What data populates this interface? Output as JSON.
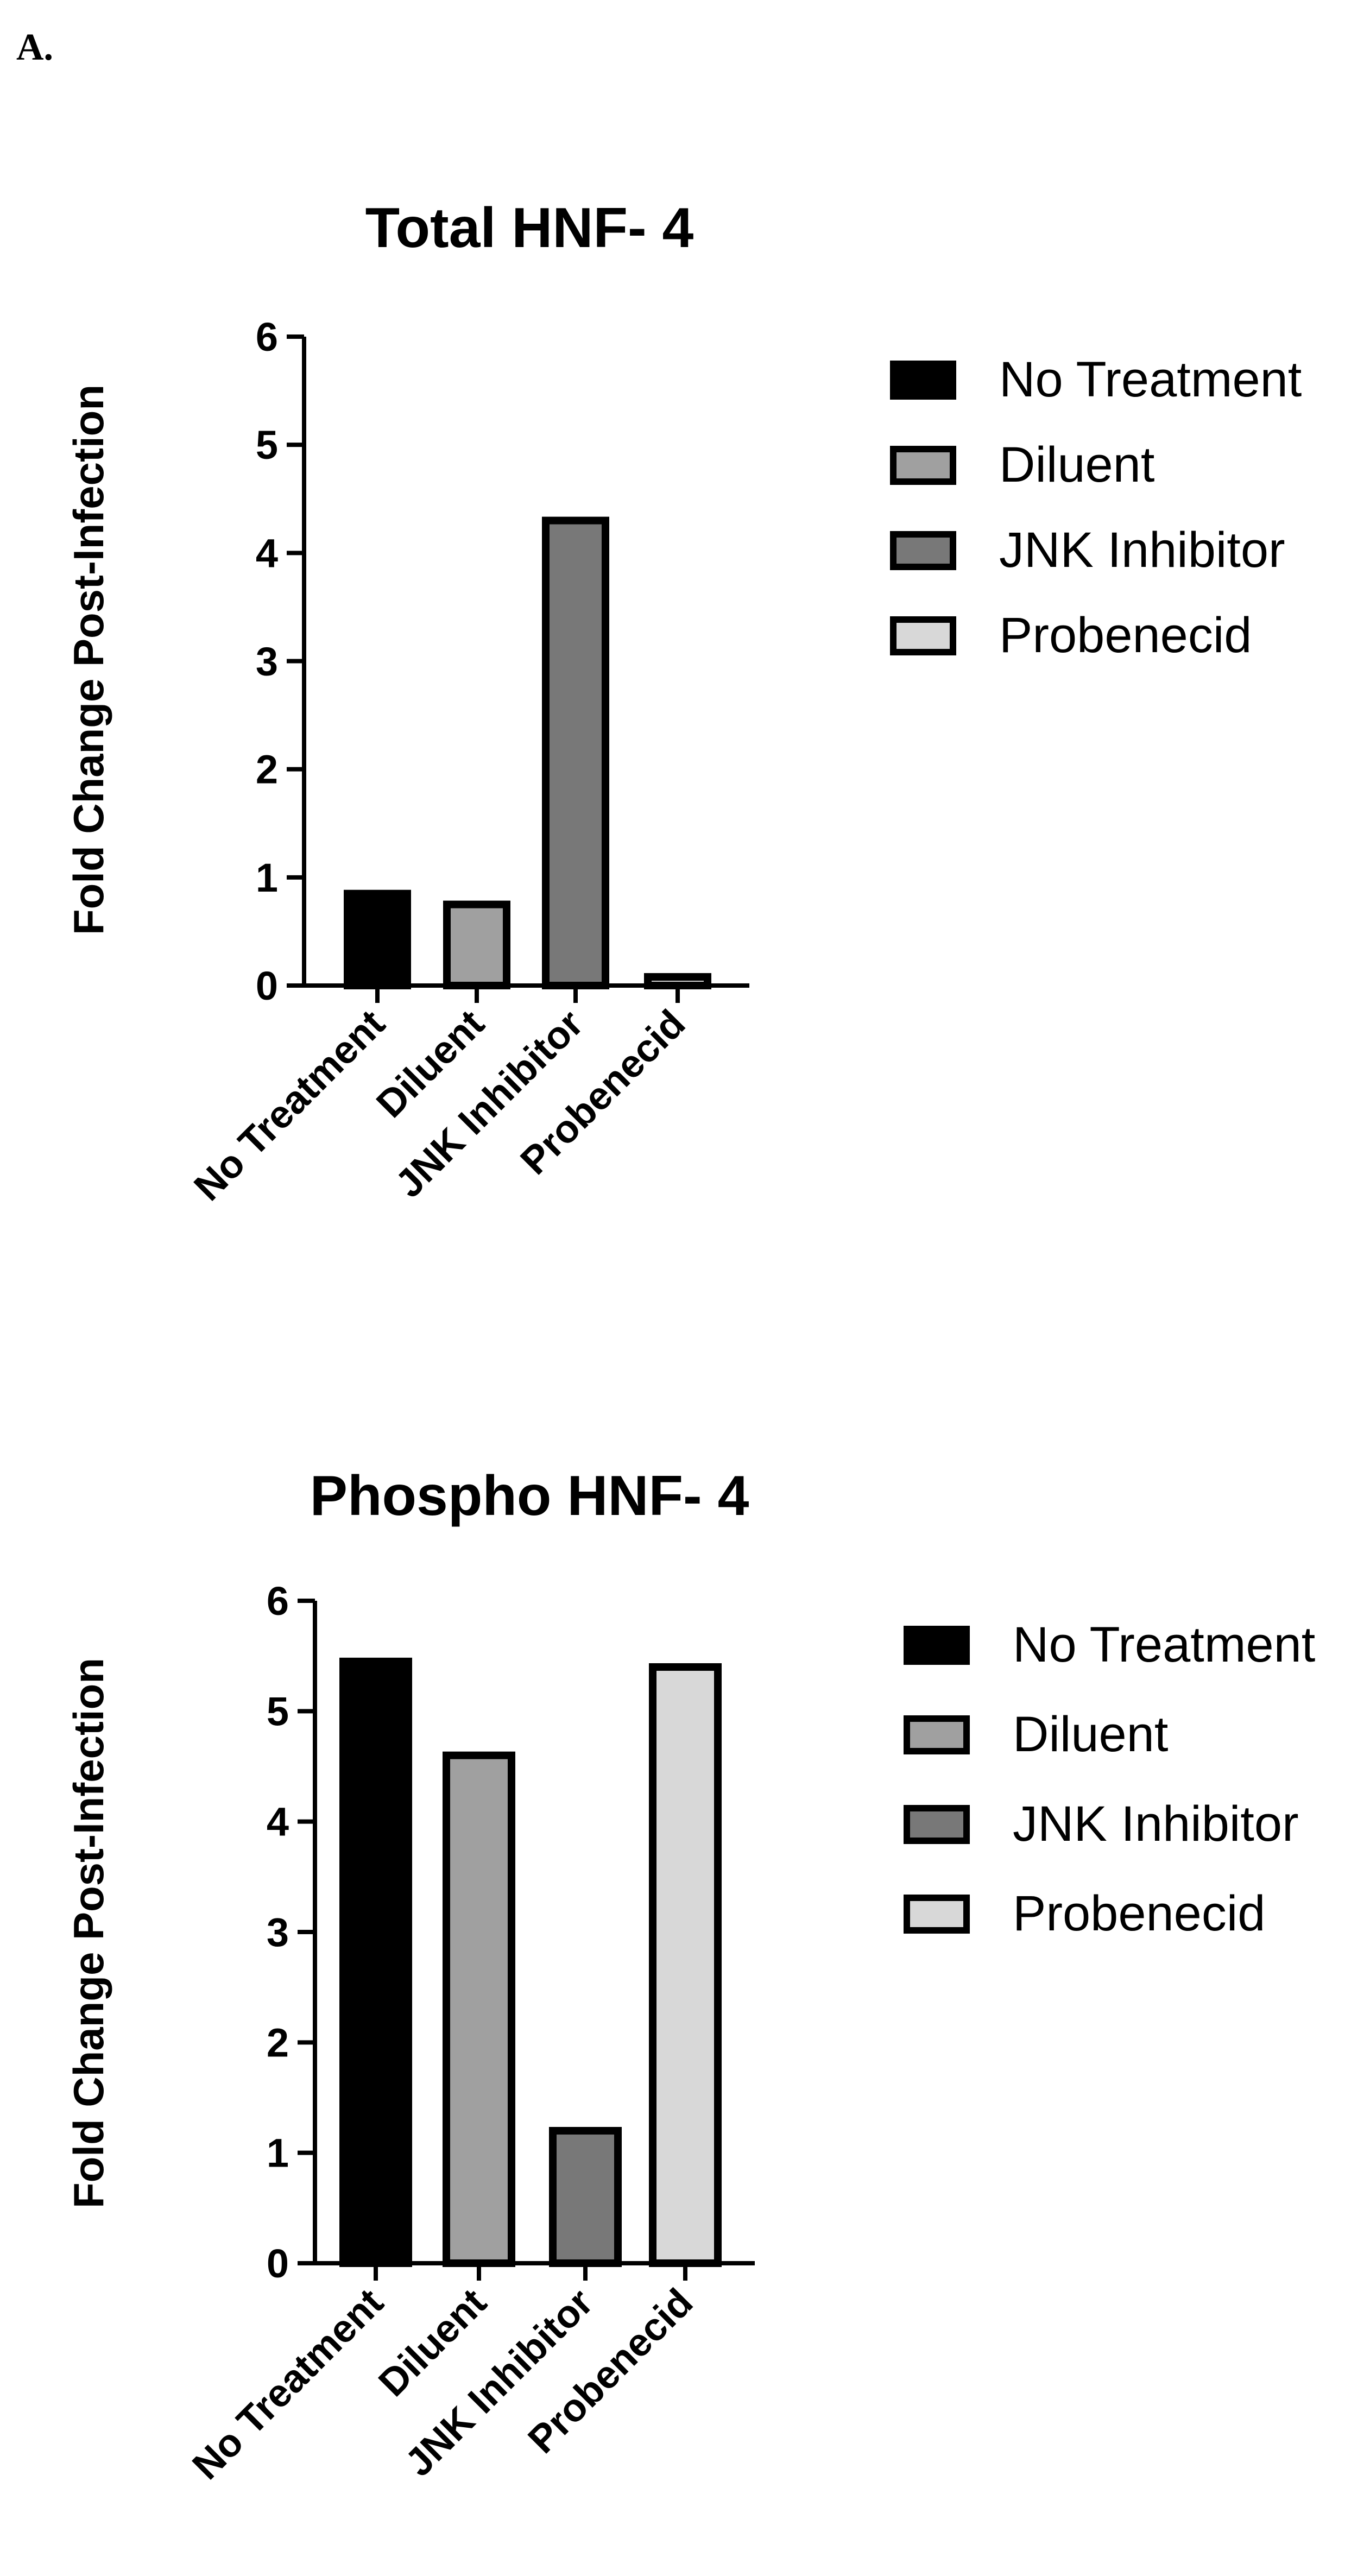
{
  "panel_label": "A.",
  "chart_data": [
    {
      "type": "bar",
      "title": "Total HNF- 4",
      "ylabel": "Fold Change Post-Infection",
      "xlabel": "",
      "categories": [
        "No Treatment",
        "Diluent",
        "JNK Inhibitor",
        "Probenecid"
      ],
      "values": [
        0.85,
        0.75,
        4.3,
        0.08
      ],
      "colors": [
        "#000000",
        "#a0a0a0",
        "#787878",
        "#d8d8d8"
      ],
      "ylim": [
        0,
        6
      ],
      "yticks": [
        "0",
        "1",
        "2",
        "3",
        "4",
        "5",
        "6"
      ],
      "grid": false,
      "legend": {
        "position": "right",
        "entries": [
          "No Treatment",
          "Diluent",
          "JNK Inhibitor",
          "Probenecid"
        ]
      }
    },
    {
      "type": "bar",
      "title": "Phospho HNF- 4",
      "ylabel": "Fold Change Post-Infection",
      "xlabel": "",
      "categories": [
        "No Treatment",
        "Diluent",
        "JNK Inhibitor",
        "Probenecid"
      ],
      "values": [
        5.45,
        4.6,
        1.2,
        5.4
      ],
      "colors": [
        "#000000",
        "#a0a0a0",
        "#787878",
        "#d8d8d8"
      ],
      "ylim": [
        0,
        6
      ],
      "yticks": [
        "0",
        "1",
        "2",
        "3",
        "4",
        "5",
        "6"
      ],
      "grid": false,
      "legend": {
        "position": "right",
        "entries": [
          "No Treatment",
          "Diluent",
          "JNK Inhibitor",
          "Probenecid"
        ]
      }
    }
  ]
}
